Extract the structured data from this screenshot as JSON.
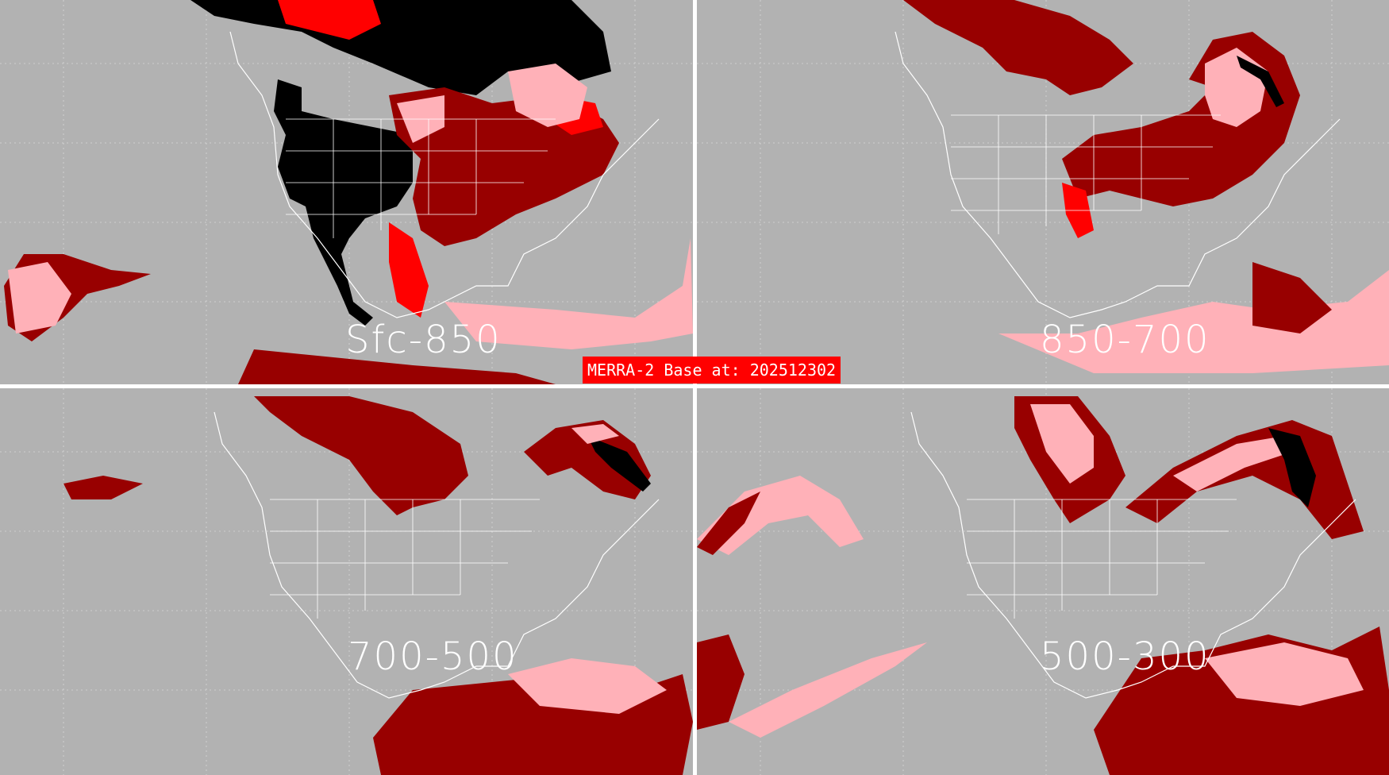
{
  "banner_text": "MERRA-2 Base at: 202512302",
  "colors": {
    "background": "#b2b2b2",
    "divider": "#ffffff",
    "light_pink": "#ffb1b8",
    "red": "#ff0000",
    "dark_red": "#980000",
    "black": "#000000",
    "coastline": "#ffffff",
    "grid": "#d8d8d8"
  },
  "panels": [
    {
      "id": "tl",
      "label": "Sfc-850"
    },
    {
      "id": "tr",
      "label": "850-700"
    },
    {
      "id": "bl",
      "label": "700-500"
    },
    {
      "id": "br",
      "label": "500-300"
    }
  ]
}
